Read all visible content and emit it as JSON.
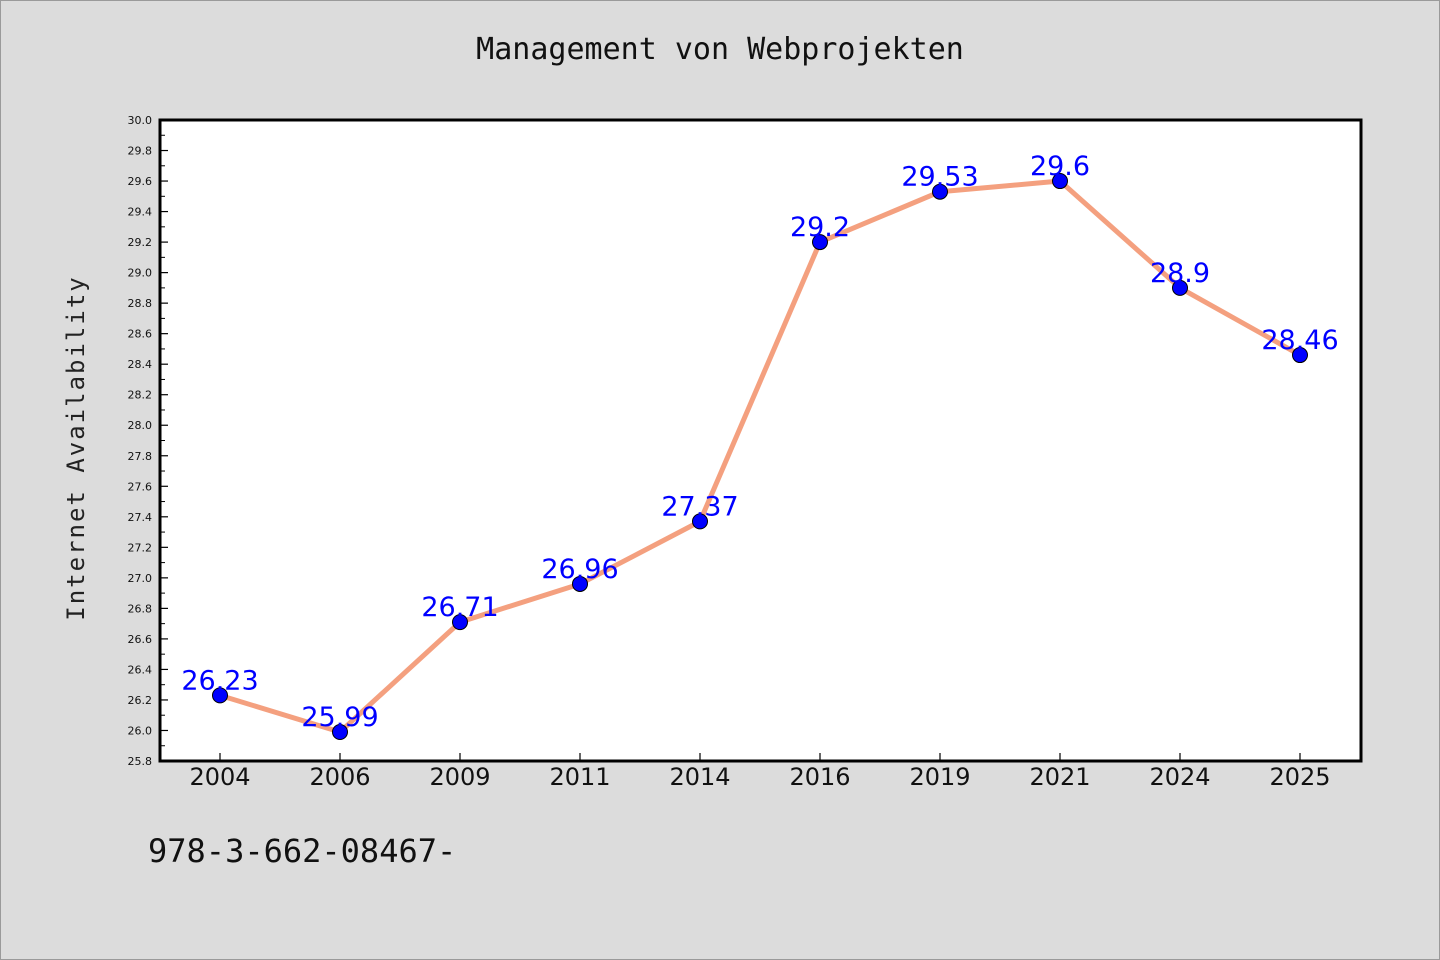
{
  "page": {
    "footer_code": "978-3-662-08467-"
  },
  "chart_data": {
    "type": "line",
    "title": "Management von Webprojekten",
    "xlabel": "",
    "ylabel": "Internet Availability",
    "categories": [
      "2004",
      "2006",
      "2009",
      "2011",
      "2014",
      "2016",
      "2019",
      "2021",
      "2024",
      "2025"
    ],
    "series": [
      {
        "values": [
          26.23,
          25.99,
          26.71,
          26.96,
          27.37,
          29.2,
          29.53,
          29.6,
          28.9,
          28.46
        ],
        "labels": [
          "26.23",
          "25.99",
          "26.71",
          "26.96",
          "27.37",
          "29.2",
          "29.53",
          "29.6",
          "28.9",
          "28.46"
        ],
        "line_color": "#f4a07f",
        "marker_color": "#0000ff"
      }
    ],
    "ylim": [
      25.8,
      30.0
    ],
    "y_ticks": [
      "25.8",
      "26.0",
      "26.2",
      "26.4",
      "26.6",
      "26.8",
      "27.0",
      "27.2",
      "27.4",
      "27.6",
      "27.8",
      "28.0",
      "28.2",
      "28.4",
      "28.6",
      "28.8",
      "29.0",
      "29.2",
      "29.4",
      "29.6",
      "29.8",
      "30.0"
    ],
    "grid": false,
    "legend": "none",
    "label_color": "#0000ff"
  }
}
